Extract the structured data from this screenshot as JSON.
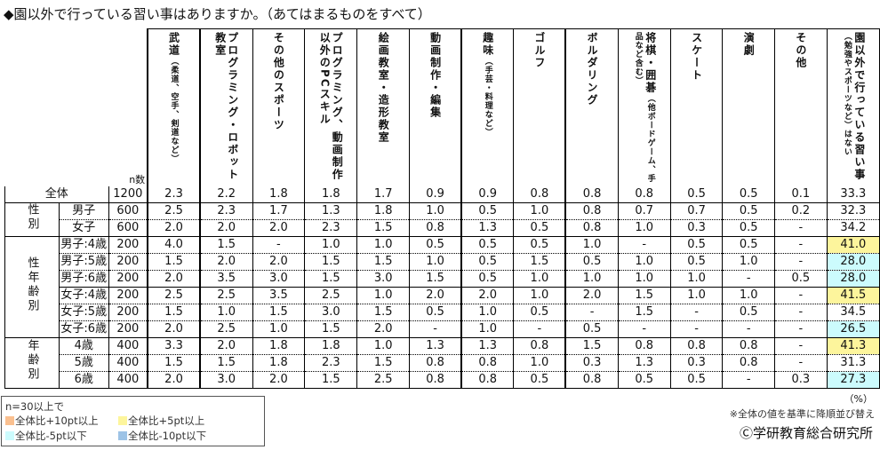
{
  "title": "◆園以外で行っている習い事はありますか。（あてはまるものをすべて）",
  "n_label": "n数",
  "columns": [
    {
      "main": "武道",
      "sub": "（柔道、空手、剣道など）"
    },
    {
      "main": "プログラミング・ロボット教室",
      "sub": ""
    },
    {
      "main": "その他のスポーツ",
      "sub": ""
    },
    {
      "main": "プログラミング、動画制作以外のPCスキル",
      "sub": ""
    },
    {
      "main": "絵画教室・造形教室",
      "sub": ""
    },
    {
      "main": "動画制作・編集",
      "sub": ""
    },
    {
      "main": "趣味",
      "sub": "（手芸・料理など）"
    },
    {
      "main": "ゴルフ",
      "sub": ""
    },
    {
      "main": "ボルダリング",
      "sub": ""
    },
    {
      "main": "将棋・囲碁",
      "sub": "（他ボードゲーム、手品など含む）"
    },
    {
      "main": "スケート",
      "sub": ""
    },
    {
      "main": "演劇",
      "sub": ""
    },
    {
      "main": "その他",
      "sub": ""
    },
    {
      "main": "園以外で行っている習い事",
      "sub": "（勉強やスポーツなど）はない"
    }
  ],
  "groups": [
    "性別",
    "性年齢別",
    "年齢別"
  ],
  "rows": [
    {
      "label": "全体",
      "n": "1200",
      "values": [
        "2.3",
        "2.2",
        "1.8",
        "1.8",
        "1.7",
        "0.9",
        "0.9",
        "0.8",
        "0.8",
        "0.8",
        "0.5",
        "0.5",
        "0.1",
        "33.3"
      ]
    },
    {
      "label": "男子",
      "n": "600",
      "values": [
        "2.5",
        "2.3",
        "1.7",
        "1.3",
        "1.8",
        "1.0",
        "0.5",
        "1.0",
        "0.8",
        "0.7",
        "0.7",
        "0.5",
        "0.2",
        "32.3"
      ]
    },
    {
      "label": "女子",
      "n": "600",
      "values": [
        "2.0",
        "2.0",
        "2.0",
        "2.3",
        "1.5",
        "0.8",
        "1.3",
        "0.5",
        "0.8",
        "1.0",
        "0.3",
        "0.5",
        "-",
        "34.2"
      ]
    },
    {
      "label": "男子:4歳",
      "n": "200",
      "values": [
        "4.0",
        "1.5",
        "-",
        "1.0",
        "1.0",
        "0.5",
        "0.5",
        "0.5",
        "1.0",
        "-",
        "0.5",
        "0.5",
        "-",
        "41.0"
      ]
    },
    {
      "label": "男子:5歳",
      "n": "200",
      "values": [
        "1.5",
        "2.0",
        "2.0",
        "1.5",
        "1.5",
        "1.0",
        "0.5",
        "1.5",
        "0.5",
        "1.0",
        "0.5",
        "1.0",
        "-",
        "28.0"
      ]
    },
    {
      "label": "男子:6歳",
      "n": "200",
      "values": [
        "2.0",
        "3.5",
        "3.0",
        "1.5",
        "3.0",
        "1.5",
        "0.5",
        "1.0",
        "1.0",
        "1.0",
        "1.0",
        "-",
        "0.5",
        "28.0"
      ]
    },
    {
      "label": "女子:4歳",
      "n": "200",
      "values": [
        "2.5",
        "2.5",
        "3.5",
        "2.5",
        "1.0",
        "2.0",
        "2.0",
        "1.0",
        "2.0",
        "1.5",
        "1.0",
        "1.0",
        "-",
        "41.5"
      ]
    },
    {
      "label": "女子:5歳",
      "n": "200",
      "values": [
        "1.5",
        "1.0",
        "1.5",
        "3.0",
        "1.5",
        "0.5",
        "1.0",
        "0.5",
        "-",
        "1.5",
        "-",
        "0.5",
        "-",
        "34.5"
      ]
    },
    {
      "label": "女子:6歳",
      "n": "200",
      "values": [
        "2.0",
        "2.5",
        "1.0",
        "1.5",
        "2.0",
        "-",
        "1.0",
        "-",
        "0.5",
        "-",
        "-",
        "-",
        "-",
        "26.5"
      ]
    },
    {
      "label": "4歳",
      "n": "400",
      "values": [
        "3.3",
        "2.0",
        "1.8",
        "1.8",
        "1.0",
        "1.3",
        "1.3",
        "0.8",
        "1.5",
        "0.8",
        "0.8",
        "0.8",
        "-",
        "41.3"
      ]
    },
    {
      "label": "5歳",
      "n": "400",
      "values": [
        "1.5",
        "1.5",
        "1.8",
        "2.3",
        "1.5",
        "0.8",
        "0.8",
        "1.0",
        "0.3",
        "1.3",
        "0.3",
        "0.8",
        "-",
        "31.3"
      ]
    },
    {
      "label": "6歳",
      "n": "400",
      "values": [
        "2.0",
        "3.0",
        "2.0",
        "1.5",
        "2.5",
        "0.8",
        "0.8",
        "0.5",
        "0.8",
        "0.5",
        "0.5",
        "-",
        "0.3",
        "27.3"
      ]
    }
  ],
  "highlights": {
    "last_column": [
      "",
      "",
      "",
      "y",
      "c",
      "c",
      "y",
      "",
      "c",
      "y",
      "",
      "c"
    ]
  },
  "highlight_colors": {
    "o": "#fac090",
    "y": "#fdf59c",
    "c": "#ccfbfd",
    "b": "#9dc3e6"
  },
  "legend": {
    "heading": "n=30以上で",
    "items": [
      {
        "label": "全体比+10pt以上",
        "color": "#fac090"
      },
      {
        "label": "全体比+5pt以上",
        "color": "#fdf59c"
      },
      {
        "label": "全体比-5pt以下",
        "color": "#ccfbfd"
      },
      {
        "label": "全体比-10pt以下",
        "color": "#9dc3e6"
      }
    ]
  },
  "unit": "（%）",
  "note": "※全体の値を基準に降順並び替え",
  "copyright": "Ⓒ学研教育総合研究所"
}
